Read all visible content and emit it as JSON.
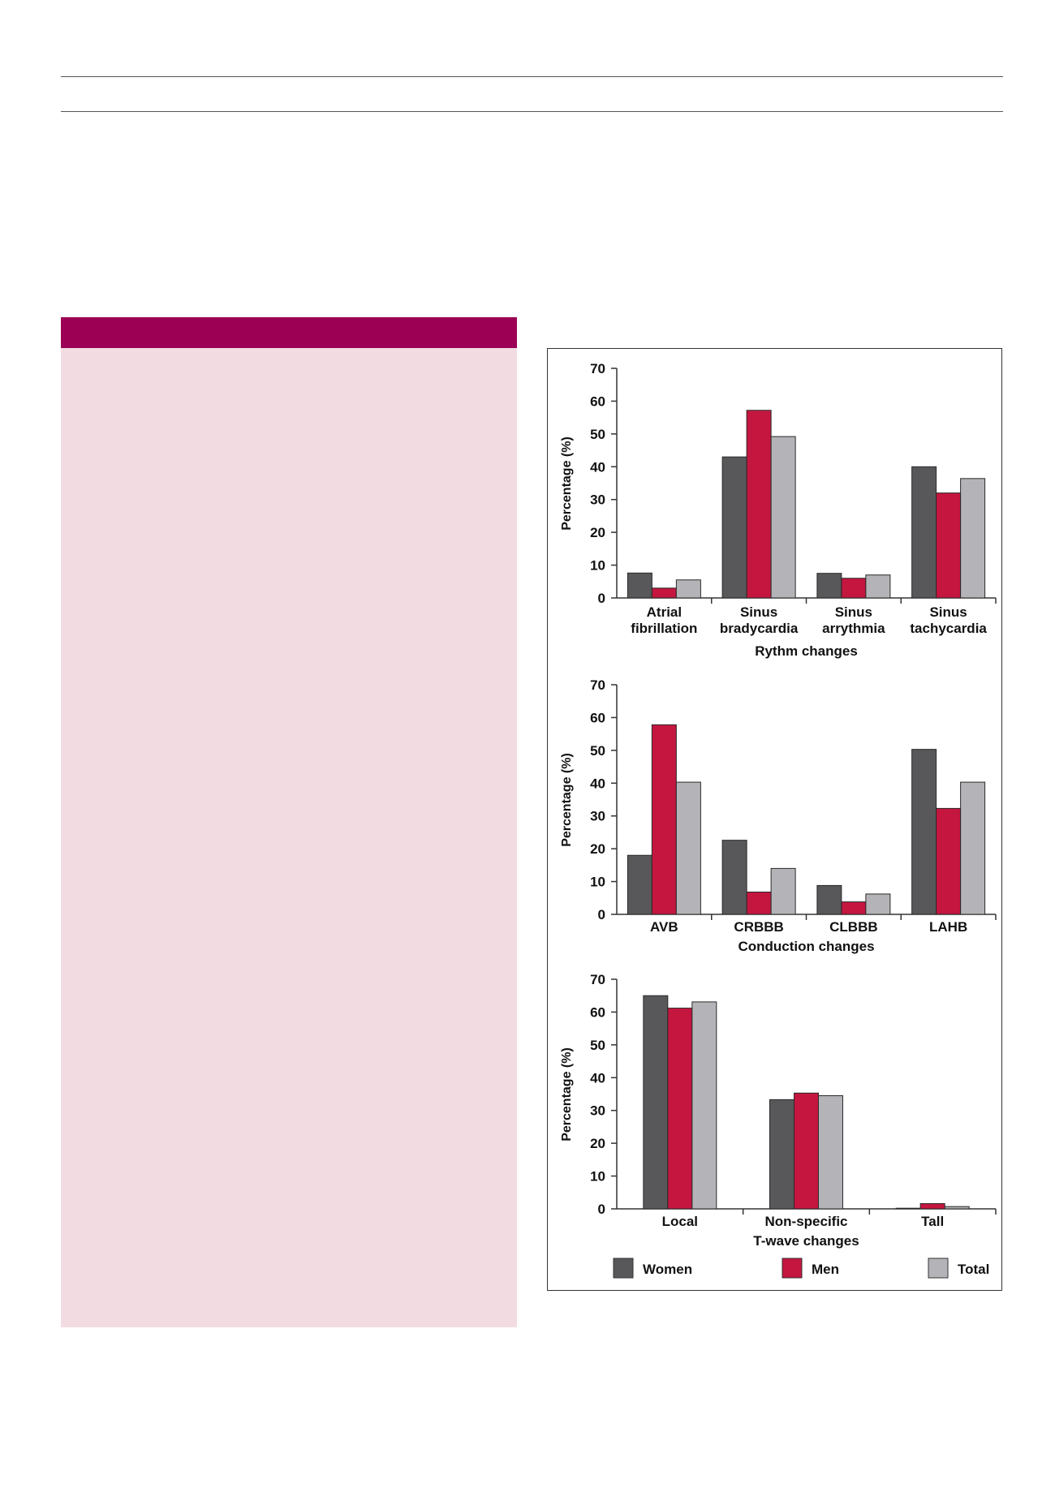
{
  "colors": {
    "sidebar_header": "#9c0054",
    "sidebar_panel": "#f2dce2",
    "women": "#58585a",
    "men": "#c4163f",
    "total": "#b4b4b8"
  },
  "legend": {
    "women": "Women",
    "men": "Men",
    "total": "Total"
  },
  "chart_data": [
    {
      "type": "bar",
      "xlabel": "Rythm changes",
      "ylabel": "Percentage (%)",
      "ylim": [
        0,
        70
      ],
      "yticks": [
        0,
        10,
        20,
        30,
        40,
        50,
        60,
        70
      ],
      "categories": [
        "Atrial fibrillation",
        "Sinus bradycardia",
        "Sinus arrythmia",
        "Sinus tachycardia"
      ],
      "category_lines": [
        [
          "Atrial",
          "fibrillation"
        ],
        [
          "Sinus",
          "bradycardia"
        ],
        [
          "Sinus",
          "arrythmia"
        ],
        [
          "Sinus",
          "tachycardia"
        ]
      ],
      "series": [
        {
          "name": "Women",
          "values": [
            7.6,
            43,
            7.5,
            40
          ]
        },
        {
          "name": "Men",
          "values": [
            3,
            57.2,
            6,
            32
          ]
        },
        {
          "name": "Total",
          "values": [
            5.5,
            49.2,
            7,
            36.4
          ]
        }
      ],
      "legend": "bottom"
    },
    {
      "type": "bar",
      "xlabel": "Conduction changes",
      "ylabel": "Percentage (%)",
      "ylim": [
        0,
        70
      ],
      "yticks": [
        0,
        10,
        20,
        30,
        40,
        50,
        60,
        70
      ],
      "categories": [
        "AVB",
        "CRBBB",
        "CLBBB",
        "LAHB"
      ],
      "category_lines": [
        [
          "AVB"
        ],
        [
          "CRBBB"
        ],
        [
          "CLBBB"
        ],
        [
          "LAHB"
        ]
      ],
      "series": [
        {
          "name": "Women",
          "values": [
            18,
            22.6,
            8.8,
            50.3
          ]
        },
        {
          "name": "Men",
          "values": [
            57.8,
            6.8,
            3.8,
            32.3
          ]
        },
        {
          "name": "Total",
          "values": [
            40.3,
            14,
            6.2,
            40.3
          ]
        }
      ],
      "legend": "bottom"
    },
    {
      "type": "bar",
      "xlabel": "T-wave changes",
      "ylabel": "Percentage (%)",
      "ylim": [
        0,
        70
      ],
      "yticks": [
        0,
        10,
        20,
        30,
        40,
        50,
        60,
        70
      ],
      "categories": [
        "Local",
        "Non-specific",
        "Tall"
      ],
      "category_lines": [
        [
          "Local"
        ],
        [
          "Non-specific"
        ],
        [
          "Tall"
        ]
      ],
      "series": [
        {
          "name": "Women",
          "values": [
            65,
            33.3,
            0.2
          ]
        },
        {
          "name": "Men",
          "values": [
            61.2,
            35.3,
            1.6
          ]
        },
        {
          "name": "Total",
          "values": [
            63.1,
            34.5,
            0.7
          ]
        }
      ],
      "legend": "bottom"
    }
  ]
}
